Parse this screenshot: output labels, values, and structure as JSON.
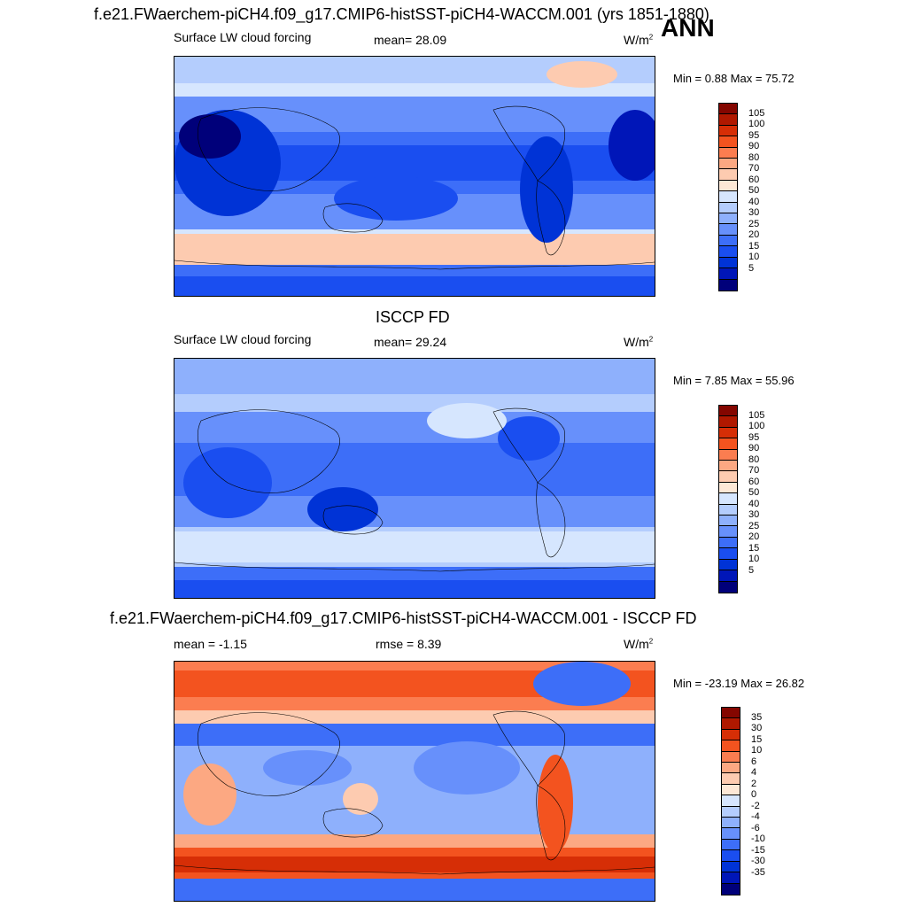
{
  "header": {
    "main_title": "f.e21.FWaerchem-piCH4.f09_g17.CMIP6-histSST-piCH4-WACCM.001 (yrs 1851-1880)",
    "season": "ANN"
  },
  "colors": {
    "seq": [
      "#00007a",
      "#0016b8",
      "#0033d6",
      "#1a4ef0",
      "#3d6ef8",
      "#6790fb",
      "#8eb0fc",
      "#b4cdfd",
      "#d6e6fe",
      "#fde8d6",
      "#fdcbb0",
      "#fca882",
      "#fb7d50",
      "#f3531f",
      "#d62e06",
      "#b01800",
      "#840600"
    ],
    "diff": [
      "#00007a",
      "#0016b8",
      "#0033d6",
      "#1a4ef0",
      "#3d6ef8",
      "#6790fb",
      "#8eb0fc",
      "#b4cdfd",
      "#d6e6fe",
      "#fde8d6",
      "#fdcbb0",
      "#fca882",
      "#fb7d50",
      "#f3531f",
      "#d62e06",
      "#b01800",
      "#840600"
    ]
  },
  "panels": [
    {
      "title": "",
      "variable": "Surface LW cloud forcing",
      "left_stat": "Surface LW cloud forcing",
      "mean_label": "mean=  28.09",
      "units": "W/m",
      "units_exp": "2",
      "minmax": "Min =   0.88 Max =  75.72",
      "ticks": [
        "105",
        "100",
        "95",
        "90",
        "80",
        "70",
        "60",
        "50",
        "40",
        "30",
        "25",
        "20",
        "15",
        "10",
        "5"
      ]
    },
    {
      "title": "ISCCP FD",
      "left_stat": "Surface LW cloud forcing",
      "mean_label": "mean=  29.24",
      "units": "W/m",
      "units_exp": "2",
      "minmax": "Min =   7.85 Max =  55.96",
      "ticks": [
        "105",
        "100",
        "95",
        "90",
        "80",
        "70",
        "60",
        "50",
        "40",
        "30",
        "25",
        "20",
        "15",
        "10",
        "5"
      ]
    },
    {
      "title": "f.e21.FWaerchem-piCH4.f09_g17.CMIP6-histSST-piCH4-WACCM.001 - ISCCP FD",
      "left_stat": "mean =  -1.15",
      "mean_label": "rmse =   8.39",
      "units": "W/m",
      "units_exp": "2",
      "minmax": "Min = -23.19 Max =  26.82",
      "ticks": [
        "35",
        "30",
        "15",
        "10",
        "6",
        "4",
        "2",
        "0",
        "-2",
        "-4",
        "-6",
        "-10",
        "-15",
        "-30",
        "-35"
      ]
    }
  ]
}
